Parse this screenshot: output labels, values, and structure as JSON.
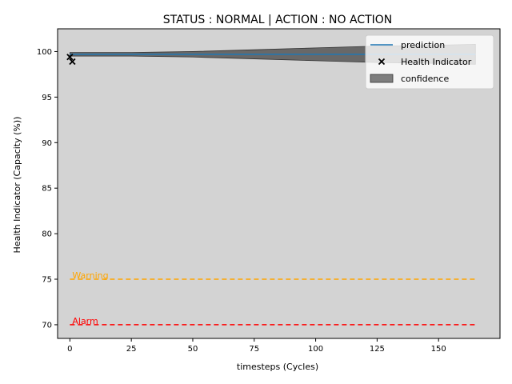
{
  "chart_data": {
    "type": "line",
    "title": "STATUS : NORMAL | ACTION : NO ACTION",
    "xlabel": "timesteps (Cycles)",
    "ylabel": "Health Indicator (Capacity (%))",
    "xlim": [
      -5,
      175
    ],
    "ylim": [
      68.5,
      102.5
    ],
    "xticks": [
      0,
      25,
      50,
      75,
      100,
      125,
      150
    ],
    "yticks": [
      70,
      75,
      80,
      85,
      90,
      95,
      100
    ],
    "background": "#d3d3d3",
    "grid": false,
    "legend_position": "top-right",
    "legend": {
      "prediction": "prediction",
      "health_indicator": "Health Indicator",
      "confidence": "confidence"
    },
    "prediction": {
      "name": "prediction",
      "color": "#1f77b4",
      "x": [
        0,
        165
      ],
      "y": [
        99.7,
        99.7
      ]
    },
    "confidence": {
      "name": "confidence",
      "color": "#555555",
      "x": [
        0,
        25,
        50,
        75,
        100,
        125,
        150,
        165
      ],
      "upper": [
        99.9,
        99.9,
        100.0,
        100.2,
        100.4,
        100.6,
        100.7,
        100.8
      ],
      "lower": [
        99.5,
        99.5,
        99.4,
        99.2,
        99.0,
        98.8,
        98.7,
        98.6
      ]
    },
    "health_indicator": {
      "name": "Health Indicator",
      "color": "#000000",
      "x": [
        0,
        1
      ],
      "y": [
        99.4,
        98.9
      ]
    },
    "thresholds": [
      {
        "label": "Warning",
        "value": 75,
        "x_start": 0,
        "x_end": 165,
        "color": "#ffa500"
      },
      {
        "label": "Alarm",
        "value": 70,
        "x_start": 0,
        "x_end": 165,
        "color": "#ff0000"
      }
    ]
  }
}
